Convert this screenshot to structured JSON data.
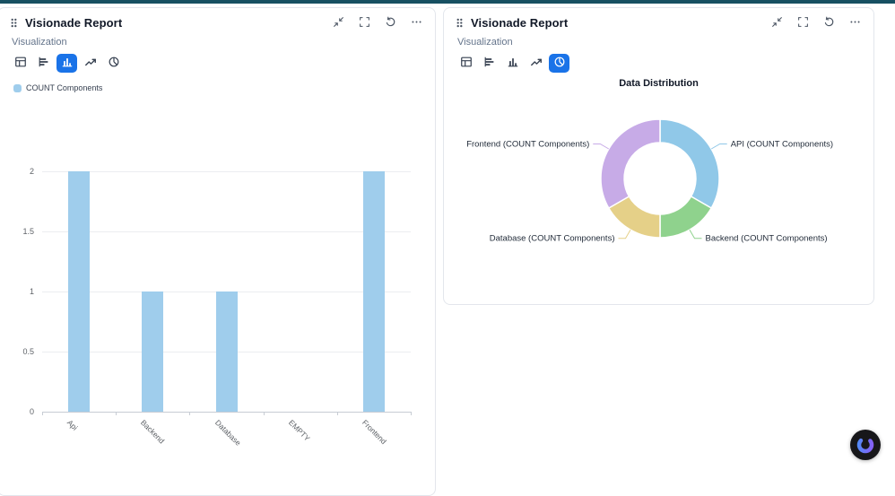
{
  "page": {
    "top_bar_color": "#175062",
    "accent_color": "#1a73e8",
    "background": "#ffffff"
  },
  "assistant_fab": {
    "icon": "assistant-swirl-icon"
  },
  "panels": [
    {
      "title": "Visionade Report",
      "section_label": "Visualization",
      "header_icons": [
        "drag-handle",
        "collapse",
        "fullscreen",
        "reset",
        "more-options"
      ],
      "tools": [
        "table",
        "bar-horizontal",
        "bar-vertical",
        "line",
        "pie"
      ],
      "selected_tool_index": 2,
      "legend": [
        {
          "label": "COUNT Components",
          "color": "#9fcdec"
        }
      ]
    },
    {
      "title": "Visionade Report",
      "section_label": "Visualization",
      "header_icons": [
        "drag-handle",
        "collapse",
        "fullscreen",
        "reset",
        "more-options"
      ],
      "tools": [
        "table",
        "bar-horizontal",
        "bar-vertical",
        "line",
        "pie"
      ],
      "selected_tool_index": 4
    }
  ],
  "chart_data": [
    {
      "type": "bar",
      "series_name": "COUNT Components",
      "categories": [
        "Api",
        "Backend",
        "Database",
        "EMPTY",
        "Frontend"
      ],
      "values": [
        2,
        1,
        1,
        0,
        2
      ],
      "ylim": [
        0,
        2
      ],
      "yticks": [
        0,
        0.5,
        1,
        1.5,
        2
      ],
      "bar_color": "#9fcdec",
      "grid": true,
      "legend_position": "top-left",
      "x_label_rotation": 45
    },
    {
      "type": "pie",
      "donut": true,
      "title": "Data Distribution",
      "labels_outside": true,
      "slices": [
        {
          "label": "API (COUNT Components)",
          "value": 2,
          "color": "#90c8e8"
        },
        {
          "label": "Backend (COUNT Components)",
          "value": 1,
          "color": "#8fd28d"
        },
        {
          "label": "Database (COUNT Components)",
          "value": 1,
          "color": "#e5d088"
        },
        {
          "label": "Frontend (COUNT Components)",
          "value": 2,
          "color": "#c7abe7"
        }
      ]
    }
  ]
}
